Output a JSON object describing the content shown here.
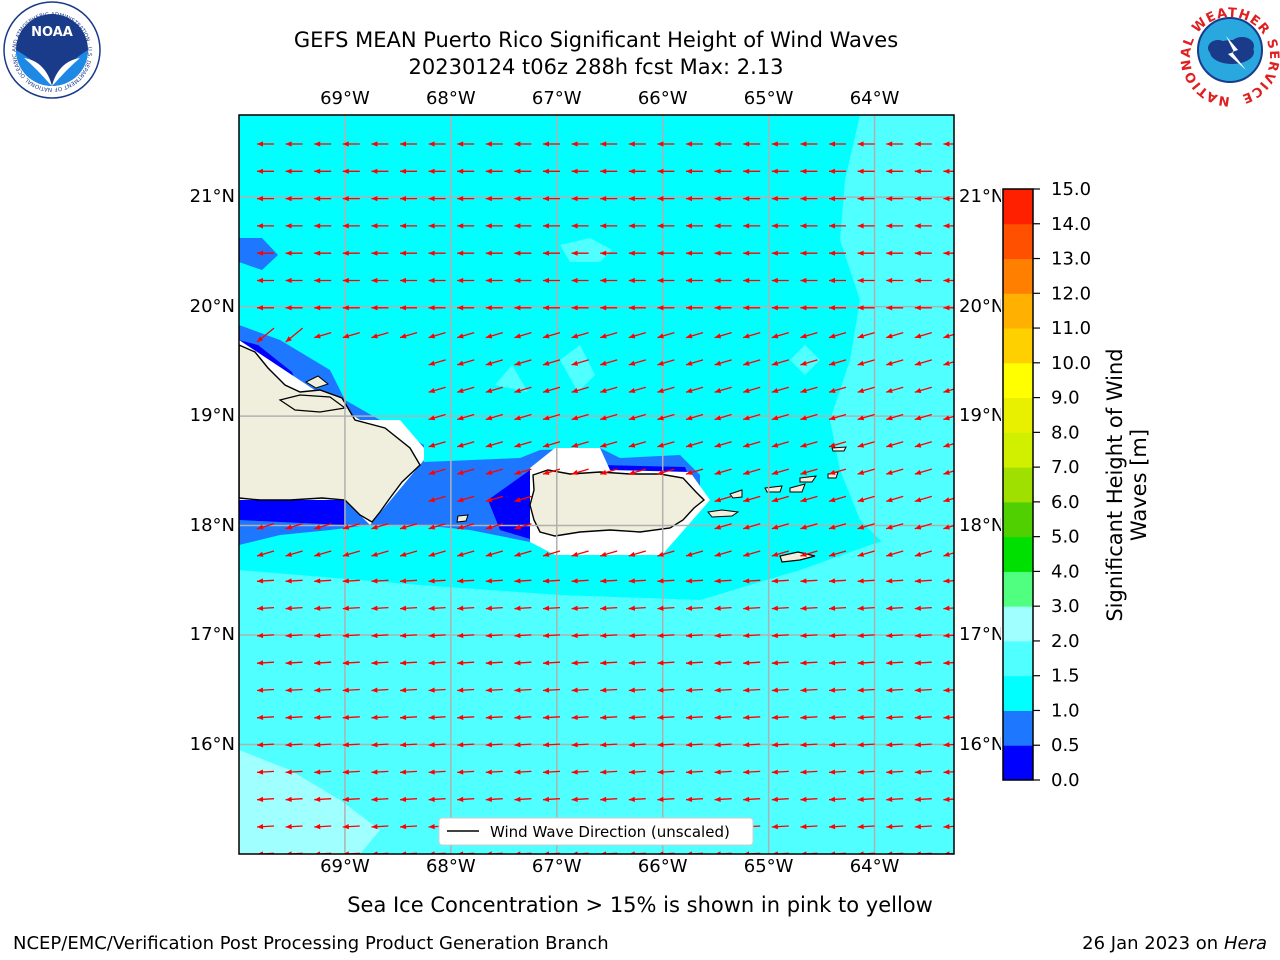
{
  "title": {
    "line1": "GEFS MEAN Puerto Rico Significant Height of Wind Waves",
    "line2": "20230124 t06z 288h fcst   Max: 2.13"
  },
  "map": {
    "lon_ticks": [
      "69°W",
      "68°W",
      "67°W",
      "66°W",
      "65°W",
      "64°W"
    ],
    "lat_ticks": [
      "21°N",
      "20°N",
      "19°N",
      "18°N",
      "17°N",
      "16°N"
    ],
    "lon_range": [
      -70.0,
      -63.25
    ],
    "lat_range": [
      15.0,
      21.75
    ],
    "arrow_color": "#ff0000",
    "coast_color": "#000000",
    "land_color": "#f0eedc",
    "grid_color": "#b0b0b0",
    "legend_label": "Wind Wave Direction (unscaled)"
  },
  "colorbar": {
    "title": "Significant Height of Wind Waves [m]",
    "levels": [
      0.0,
      0.5,
      1.0,
      1.5,
      2.0,
      3.0,
      4.0,
      5.0,
      6.0,
      7.0,
      8.0,
      9.0,
      10.0,
      11.0,
      12.0,
      13.0,
      14.0,
      15.0
    ],
    "labels": [
      "0.0",
      "0.5",
      "1.0",
      "1.5",
      "2.0",
      "3.0",
      "4.0",
      "5.0",
      "6.0",
      "7.0",
      "8.0",
      "9.0",
      "10.0",
      "11.0",
      "12.0",
      "13.0",
      "14.0",
      "15.0"
    ],
    "colors": [
      "#0000ff",
      "#1e78ff",
      "#00ffff",
      "#50ffff",
      "#a0ffff",
      "#50ff80",
      "#00e000",
      "#50d000",
      "#a0e000",
      "#d0f000",
      "#e8f000",
      "#ffff00",
      "#ffd000",
      "#ffb000",
      "#ff8000",
      "#ff5000",
      "#ff2000"
    ]
  },
  "subtitle": "Sea Ice Concentration > 15% is shown in pink to yellow",
  "footer": {
    "credit": "NCEP/EMC/Verification Post Processing Product Generation Branch",
    "date": "26 Jan 2023 on ",
    "host": "Hera"
  },
  "logos": {
    "noaa_text": "NOAA",
    "noaa_ring": "NATIONAL OCEANIC AND ATMOSPHERIC ADMINISTRATION · U.S. DEPARTMENT OF COMMERCE",
    "nws_ring": "NATIONAL WEATHER SERVICE"
  }
}
